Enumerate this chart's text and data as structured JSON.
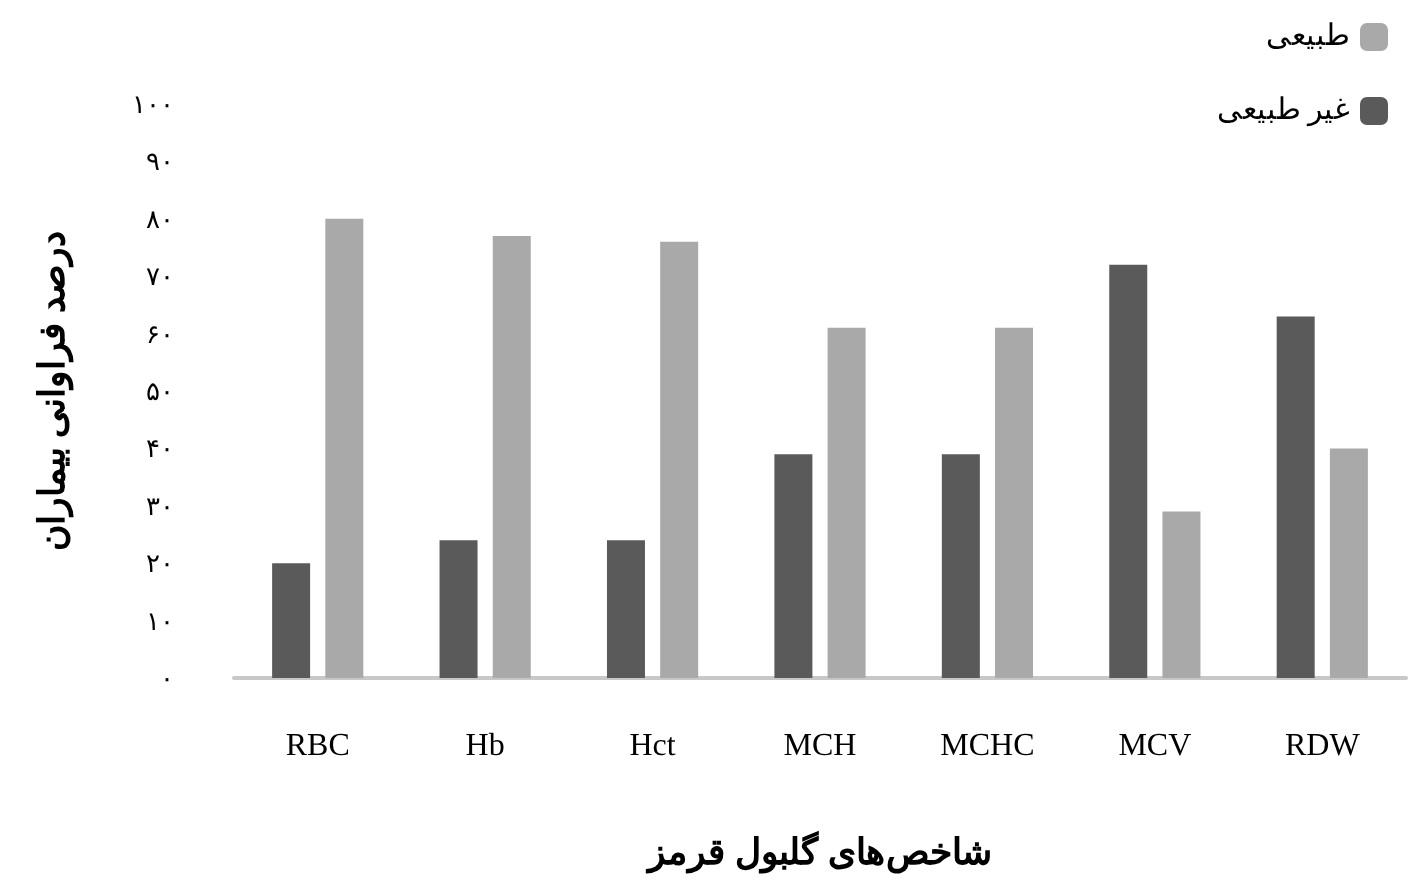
{
  "chart_data": {
    "type": "bar",
    "xlabel": "شاخص‌های گلبول قرمز",
    "ylabel": "درصد فراوانی بیماران",
    "categories": [
      "RBC",
      "Hb",
      "Hct",
      "MCH",
      "MCHC",
      "MCV",
      "RDW"
    ],
    "series": [
      {
        "name": "غیر طبیعی",
        "color": "#5a5a5a",
        "values": [
          20,
          24,
          24,
          39,
          39,
          72,
          63
        ]
      },
      {
        "name": "طبیعی",
        "color": "#a9a9a9",
        "values": [
          80,
          77,
          76,
          61,
          61,
          29,
          40
        ]
      }
    ],
    "ylim": [
      0,
      100
    ],
    "yticks": [
      {
        "value": 0,
        "label": "۰"
      },
      {
        "value": 10,
        "label": "۱۰"
      },
      {
        "value": 20,
        "label": "۲۰"
      },
      {
        "value": 30,
        "label": "۳۰"
      },
      {
        "value": 40,
        "label": "۴۰"
      },
      {
        "value": 50,
        "label": "۵۰"
      },
      {
        "value": 60,
        "label": "۶۰"
      },
      {
        "value": 70,
        "label": "۷۰"
      },
      {
        "value": 80,
        "label": "۸۰"
      },
      {
        "value": 90,
        "label": "۹۰"
      },
      {
        "value": 100,
        "label": "۱۰۰"
      }
    ],
    "grid": false,
    "legend": "top right"
  }
}
